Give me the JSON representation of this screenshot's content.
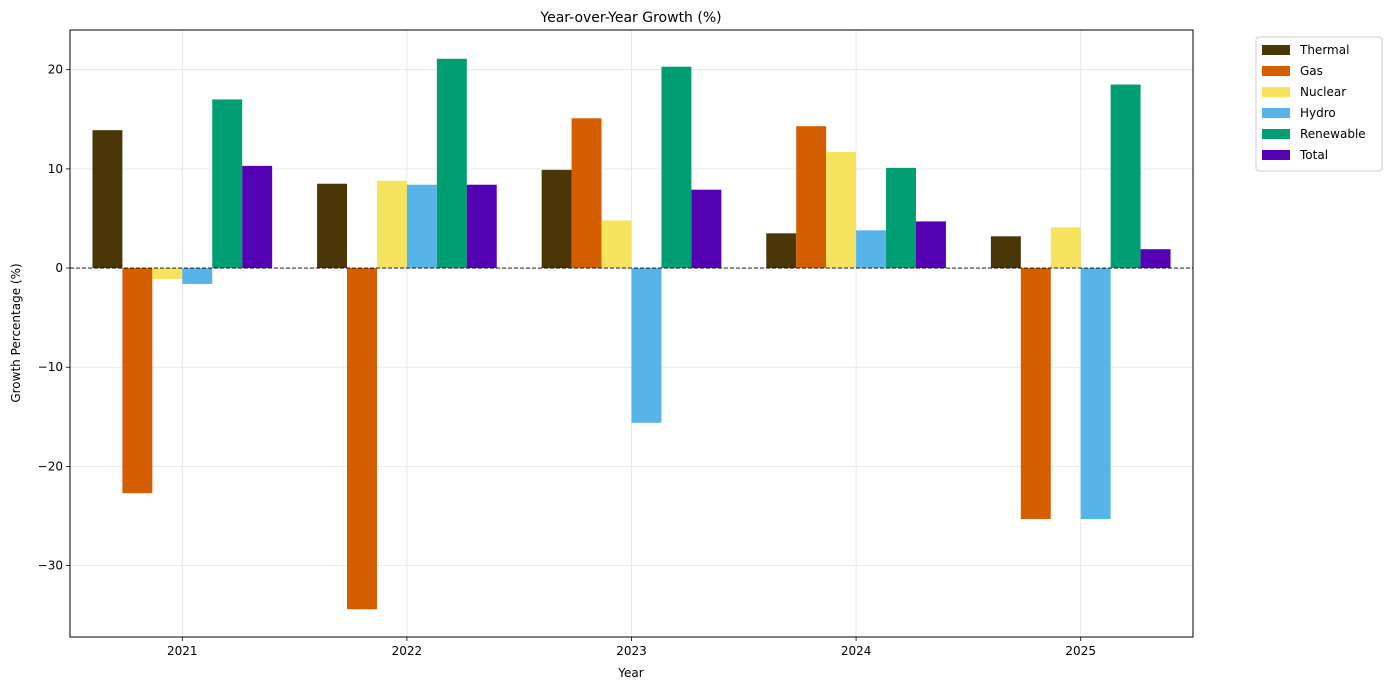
{
  "chart_data": {
    "type": "bar",
    "title": "Year-over-Year Growth (%)",
    "xlabel": "Year",
    "ylabel": "Growth Percentage (%)",
    "categories": [
      "2021",
      "2022",
      "2023",
      "2024",
      "2025"
    ],
    "ylim": [
      -37.2,
      24.0
    ],
    "yticks": [
      20,
      10,
      0,
      -10,
      -20,
      -30
    ],
    "ytick_labels": [
      "20",
      "10",
      "0",
      "−10",
      "−20",
      "−30"
    ],
    "grid": true,
    "zero_line": "dashed",
    "legend_position": "outside-top-right",
    "series": [
      {
        "name": "Thermal",
        "color": "#4a3606",
        "values": [
          13.9,
          8.5,
          9.9,
          3.5,
          3.2
        ]
      },
      {
        "name": "Gas",
        "color": "#d55e00",
        "values": [
          -22.7,
          -34.4,
          15.1,
          14.3,
          -25.3
        ]
      },
      {
        "name": "Nuclear",
        "color": "#f6e45e",
        "values": [
          -1.1,
          8.8,
          4.8,
          11.7,
          4.1
        ]
      },
      {
        "name": "Hydro",
        "color": "#56b4e9",
        "values": [
          -1.6,
          8.4,
          -15.6,
          3.8,
          -25.3
        ]
      },
      {
        "name": "Renewable",
        "color": "#009e73",
        "values": [
          17.0,
          21.1,
          20.3,
          10.1,
          18.5
        ]
      },
      {
        "name": "Total",
        "color": "#5301b3",
        "values": [
          10.3,
          8.4,
          7.9,
          4.7,
          1.9
        ]
      }
    ]
  }
}
